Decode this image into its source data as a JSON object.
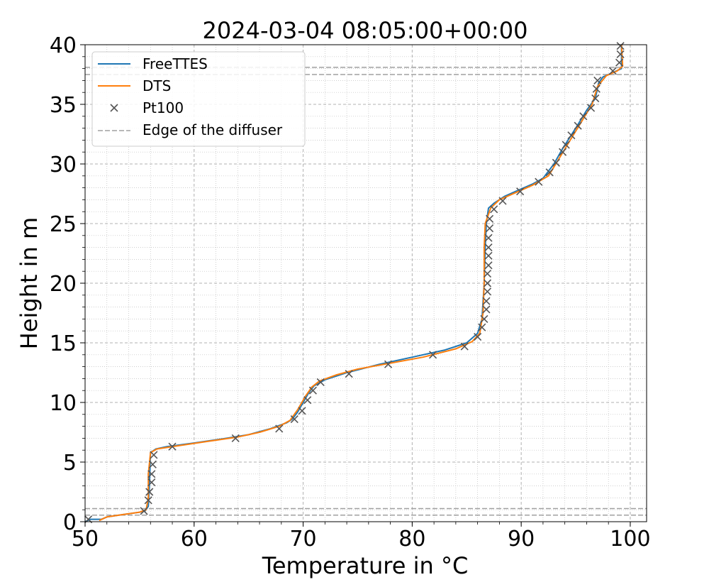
{
  "chart_data": {
    "type": "line",
    "title": "2024-03-04 08:05:00+00:00",
    "xlabel": "Temperature in °C",
    "ylabel": "Height in m",
    "xlim": [
      50,
      101.5
    ],
    "ylim": [
      0,
      40
    ],
    "x_ticks": [
      50,
      60,
      70,
      80,
      90,
      100
    ],
    "y_ticks": [
      0,
      5,
      10,
      15,
      20,
      25,
      30,
      35,
      40
    ],
    "x_minor_step": 2,
    "y_minor_step": 1,
    "grid": "major dashed, minor dotted",
    "legend_position": "upper-left",
    "colors": {
      "FreeTTES": "#1f77b4",
      "DTS": "#ff7f0e",
      "Pt100": "#555555",
      "diffuser": "#a0a0a0"
    },
    "series": [
      {
        "name": "FreeTTES",
        "kind": "line",
        "points": [
          [
            50.0,
            0.0
          ],
          [
            50.5,
            0.2
          ],
          [
            51.5,
            0.2
          ],
          [
            52.0,
            0.4
          ],
          [
            53.5,
            0.6
          ],
          [
            55.0,
            0.8
          ],
          [
            55.5,
            0.9
          ],
          [
            55.8,
            1.3
          ],
          [
            55.9,
            3.0
          ],
          [
            56.0,
            5.8
          ],
          [
            56.5,
            6.1
          ],
          [
            57.5,
            6.3
          ],
          [
            60.0,
            6.6
          ],
          [
            63.0,
            7.0
          ],
          [
            65.0,
            7.3
          ],
          [
            67.0,
            7.8
          ],
          [
            68.5,
            8.3
          ],
          [
            69.0,
            8.6
          ],
          [
            69.5,
            9.2
          ],
          [
            70.0,
            10.0
          ],
          [
            70.5,
            10.8
          ],
          [
            71.0,
            11.4
          ],
          [
            72.0,
            11.9
          ],
          [
            74.0,
            12.5
          ],
          [
            77.0,
            13.2
          ],
          [
            80.0,
            13.8
          ],
          [
            83.0,
            14.4
          ],
          [
            85.0,
            15.0
          ],
          [
            86.0,
            15.8
          ],
          [
            86.4,
            17.0
          ],
          [
            86.6,
            20.0
          ],
          [
            86.7,
            23.0
          ],
          [
            86.8,
            25.0
          ],
          [
            87.0,
            26.3
          ],
          [
            87.5,
            26.7
          ],
          [
            88.5,
            27.3
          ],
          [
            89.5,
            27.7
          ],
          [
            91.0,
            28.3
          ],
          [
            92.0,
            28.8
          ],
          [
            93.0,
            30.0
          ],
          [
            93.8,
            31.3
          ],
          [
            95.0,
            33.0
          ],
          [
            96.0,
            34.5
          ],
          [
            96.8,
            35.5
          ],
          [
            97.1,
            36.8
          ],
          [
            97.5,
            37.3
          ],
          [
            98.5,
            37.7
          ],
          [
            99.2,
            38.0
          ],
          [
            99.2,
            40.0
          ]
        ]
      },
      {
        "name": "DTS",
        "kind": "line",
        "points": [
          [
            51.3,
            0.1
          ],
          [
            52.0,
            0.4
          ],
          [
            53.5,
            0.6
          ],
          [
            55.0,
            0.8
          ],
          [
            55.6,
            1.0
          ],
          [
            55.8,
            2.0
          ],
          [
            55.8,
            4.0
          ],
          [
            56.0,
            5.8
          ],
          [
            56.6,
            6.1
          ],
          [
            58.0,
            6.3
          ],
          [
            61.0,
            6.7
          ],
          [
            64.0,
            7.1
          ],
          [
            66.0,
            7.5
          ],
          [
            67.8,
            8.0
          ],
          [
            68.8,
            8.5
          ],
          [
            69.5,
            9.4
          ],
          [
            70.2,
            10.5
          ],
          [
            70.8,
            11.3
          ],
          [
            71.5,
            11.8
          ],
          [
            73.0,
            12.3
          ],
          [
            75.0,
            12.8
          ],
          [
            78.0,
            13.3
          ],
          [
            81.0,
            13.8
          ],
          [
            84.0,
            14.5
          ],
          [
            85.5,
            15.1
          ],
          [
            86.2,
            15.8
          ],
          [
            86.5,
            17.5
          ],
          [
            86.6,
            20.0
          ],
          [
            86.6,
            23.0
          ],
          [
            86.7,
            25.0
          ],
          [
            87.2,
            26.3
          ],
          [
            88.0,
            27.0
          ],
          [
            89.5,
            27.6
          ],
          [
            91.0,
            28.2
          ],
          [
            92.5,
            29.0
          ],
          [
            93.5,
            30.5
          ],
          [
            94.5,
            32.0
          ],
          [
            95.5,
            33.5
          ],
          [
            96.5,
            35.0
          ],
          [
            97.0,
            36.5
          ],
          [
            97.8,
            37.4
          ],
          [
            98.8,
            37.8
          ],
          [
            99.3,
            38.2
          ],
          [
            99.2,
            40.0
          ]
        ]
      },
      {
        "name": "Pt100",
        "kind": "scatter",
        "points": [
          [
            50.3,
            0.2
          ],
          [
            55.4,
            0.9
          ],
          [
            55.8,
            1.8
          ],
          [
            55.9,
            2.5
          ],
          [
            56.1,
            3.3
          ],
          [
            56.1,
            4.0
          ],
          [
            56.2,
            4.8
          ],
          [
            56.3,
            5.6
          ],
          [
            58.0,
            6.3
          ],
          [
            63.8,
            7.0
          ],
          [
            67.8,
            7.8
          ],
          [
            69.2,
            8.6
          ],
          [
            69.9,
            9.3
          ],
          [
            70.4,
            10.2
          ],
          [
            70.9,
            11.0
          ],
          [
            71.6,
            11.7
          ],
          [
            74.2,
            12.4
          ],
          [
            77.8,
            13.2
          ],
          [
            81.9,
            14.0
          ],
          [
            84.8,
            14.7
          ],
          [
            86.0,
            15.5
          ],
          [
            86.4,
            16.3
          ],
          [
            86.6,
            17.0
          ],
          [
            86.8,
            17.8
          ],
          [
            86.8,
            18.5
          ],
          [
            86.9,
            19.3
          ],
          [
            86.9,
            20.0
          ],
          [
            86.9,
            20.8
          ],
          [
            87.0,
            21.5
          ],
          [
            87.0,
            22.3
          ],
          [
            87.0,
            23.0
          ],
          [
            87.0,
            23.8
          ],
          [
            87.1,
            24.6
          ],
          [
            87.1,
            25.4
          ],
          [
            87.5,
            26.2
          ],
          [
            88.3,
            26.9
          ],
          [
            89.9,
            27.7
          ],
          [
            91.6,
            28.5
          ],
          [
            92.6,
            29.3
          ],
          [
            93.2,
            30.1
          ],
          [
            93.8,
            31.0
          ],
          [
            94.1,
            31.6
          ],
          [
            94.6,
            32.4
          ],
          [
            95.2,
            33.2
          ],
          [
            95.7,
            34.0
          ],
          [
            96.4,
            34.7
          ],
          [
            96.8,
            35.5
          ],
          [
            96.9,
            36.3
          ],
          [
            97.0,
            37.0
          ],
          [
            98.4,
            37.8
          ],
          [
            99.0,
            38.5
          ],
          [
            99.1,
            39.2
          ],
          [
            99.1,
            39.9
          ]
        ]
      }
    ],
    "diffuser_edges": {
      "name": "Edge of the diffuser",
      "y": [
        0.55,
        1.1,
        37.5,
        38.1
      ]
    }
  }
}
